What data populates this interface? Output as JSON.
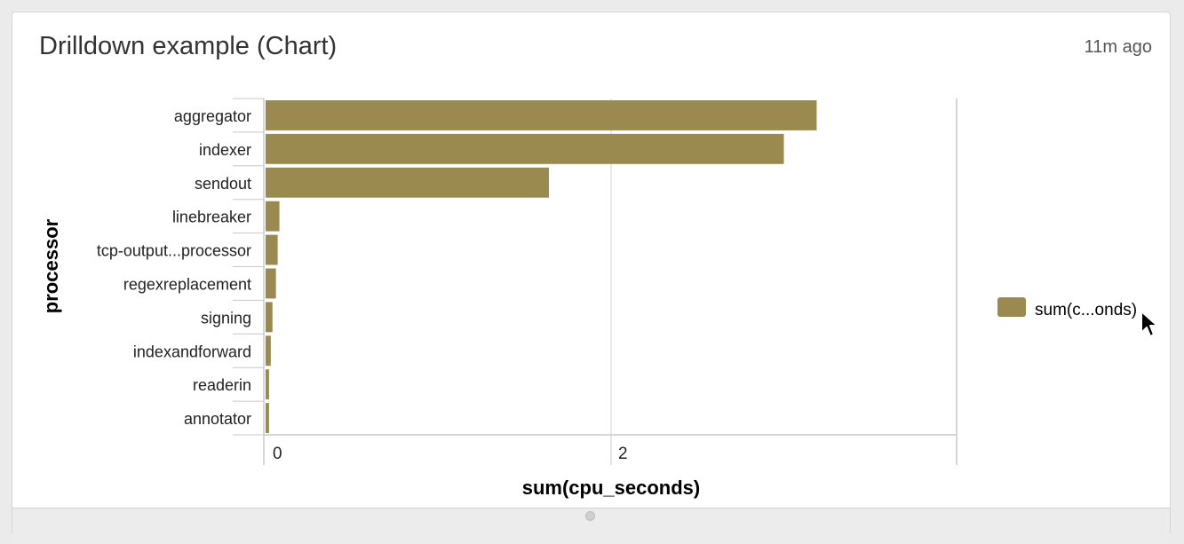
{
  "panel": {
    "title": "Drilldown example (Chart)",
    "time": "11m ago"
  },
  "chart_data": {
    "type": "bar",
    "orientation": "horizontal",
    "categories": [
      "aggregator",
      "indexer",
      "sendout",
      "linebreaker",
      "tcp-output...processor",
      "regexreplacement",
      "signing",
      "indexandforward",
      "readerin",
      "annotator"
    ],
    "series": [
      {
        "name": "sum(c...onds)",
        "values": [
          3.19,
          3.0,
          1.64,
          0.08,
          0.07,
          0.06,
          0.04,
          0.03,
          0.02,
          0.02
        ]
      }
    ],
    "xlabel": "sum(cpu_seconds)",
    "ylabel": "processor",
    "xticks": [
      "0",
      "2"
    ],
    "xlim": [
      0,
      4
    ],
    "grid": true,
    "legend": "right",
    "color": "#9a8a4f"
  },
  "cursor_icon": "pointer-arrow-icon"
}
